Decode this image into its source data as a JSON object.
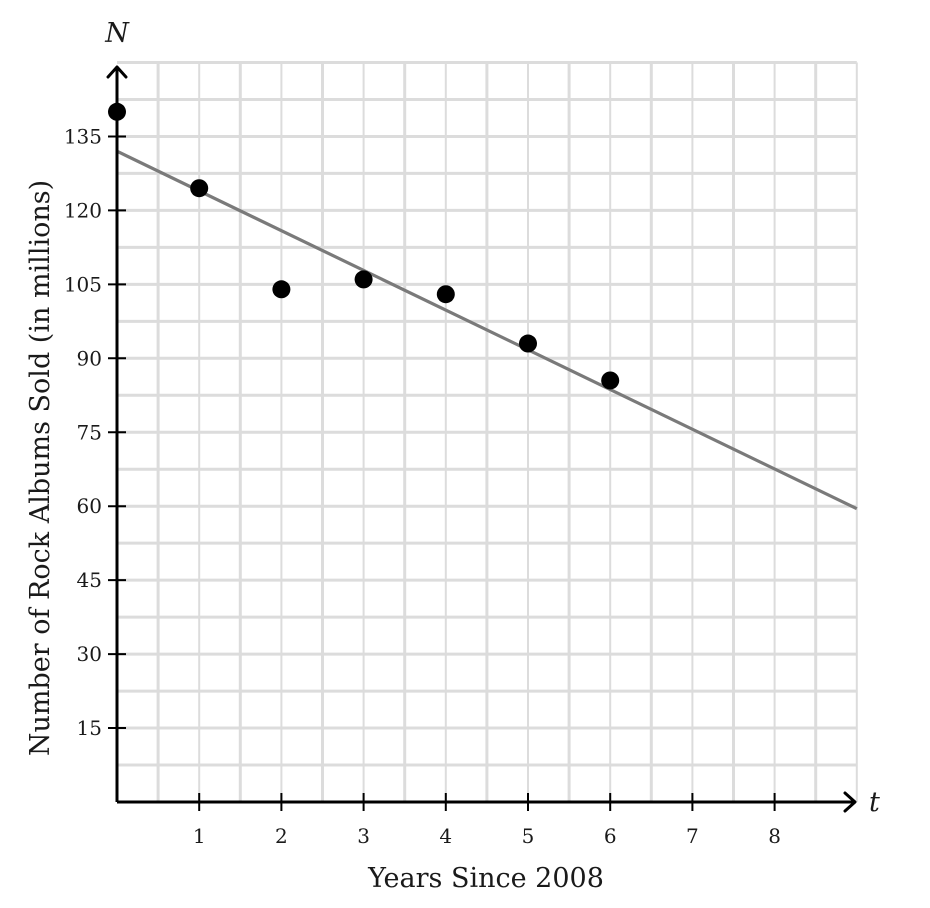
{
  "chart_data": {
    "type": "scatter",
    "title": "",
    "xlabel": "Years Since 2008",
    "ylabel": "Number of Rock Albums Sold (in millions)",
    "x_axis_var": "t",
    "y_axis_var": "N",
    "xlim": [
      0,
      9
    ],
    "ylim": [
      0,
      150
    ],
    "x_major_ticks": [
      1,
      2,
      3,
      4,
      5,
      6,
      7,
      8
    ],
    "x_minor_step": 0.5,
    "y_major_ticks": [
      15,
      30,
      45,
      60,
      75,
      90,
      105,
      120,
      135
    ],
    "y_minor_step": 7.5,
    "x_tick_labels": [
      "1",
      "2",
      "3",
      "4",
      "5",
      "6",
      "7",
      "8"
    ],
    "y_tick_labels": [
      "15",
      "30",
      "45",
      "60",
      "75",
      "90",
      "105",
      "120",
      "135"
    ],
    "grid": true,
    "series": [
      {
        "type": "scatter",
        "x": [
          0,
          1,
          2,
          3,
          4,
          5,
          6
        ],
        "y": [
          140,
          124.5,
          104,
          106,
          103,
          93,
          85.5
        ],
        "color": "#000000"
      },
      {
        "type": "line",
        "x": [
          0,
          9
        ],
        "y": [
          132,
          59.5
        ],
        "color": "#7a7a7a"
      }
    ]
  }
}
